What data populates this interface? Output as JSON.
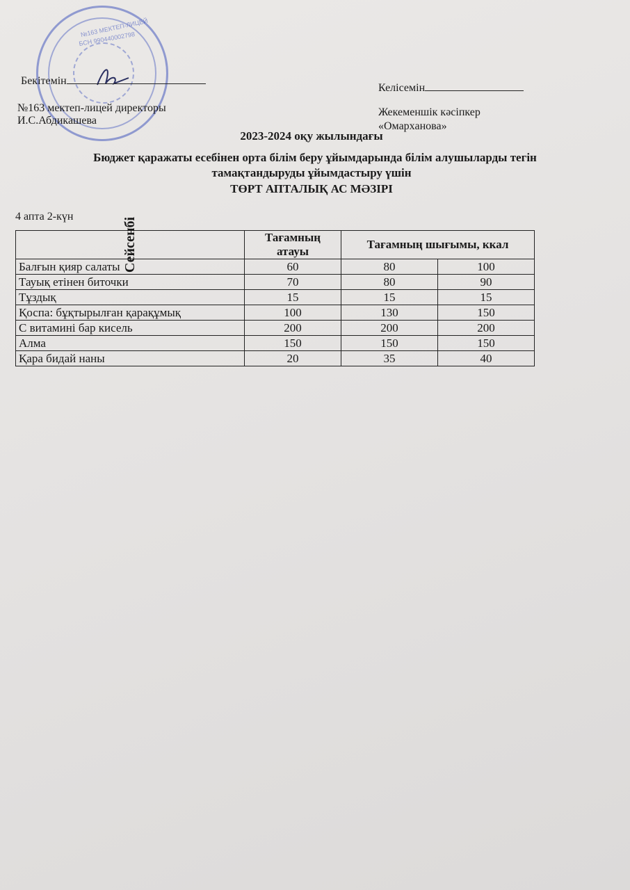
{
  "stamp": {
    "line1": "№163 МЕКТЕП-ЛИЦЕЙ",
    "line2": "БСН 990440002798"
  },
  "approve": {
    "label": "Бекітемін",
    "position": "№163 мектеп-лицей директоры",
    "name": "И.С.Абдикашева"
  },
  "agree": {
    "label": "Келісемін",
    "position": "Жекеменшік кәсіпкер",
    "name": "«Омарханова»"
  },
  "heading": {
    "line1": "2023-2024 оқу жылындағы",
    "line2": "Бюджет қаражаты есебінен орта білім беру ұйымдарында білім алушыларды тегін",
    "line3": "тамақтандыруды ұйымдастыру үшін",
    "line4": "ТӨРТ АПТАЛЫҚ АС МӘЗІРІ"
  },
  "week_day": "4 апта 2-күн",
  "table": {
    "day": "Сейсенбі",
    "col_name": "Тағамның атауы",
    "col_yield": "Тағамның шығымы, ккал",
    "rows": [
      {
        "name": "Балғын қияр салаты",
        "v": [
          "60",
          "80",
          "100"
        ]
      },
      {
        "name": "Тауық етінен биточки",
        "v": [
          "70",
          "80",
          "90"
        ]
      },
      {
        "name": "Тұздық",
        "v": [
          "15",
          "15",
          "15"
        ]
      },
      {
        "name": "Қоспа: бұқтырылған қарақұмық",
        "v": [
          "100",
          "130",
          "150"
        ]
      },
      {
        "name": "С витамині бар кисель",
        "v": [
          "200",
          "200",
          "200"
        ]
      },
      {
        "name": "Алма",
        "v": [
          "150",
          "150",
          "150"
        ]
      },
      {
        "name": "Қара бидай наны",
        "v": [
          "20",
          "35",
          "40"
        ]
      }
    ]
  }
}
